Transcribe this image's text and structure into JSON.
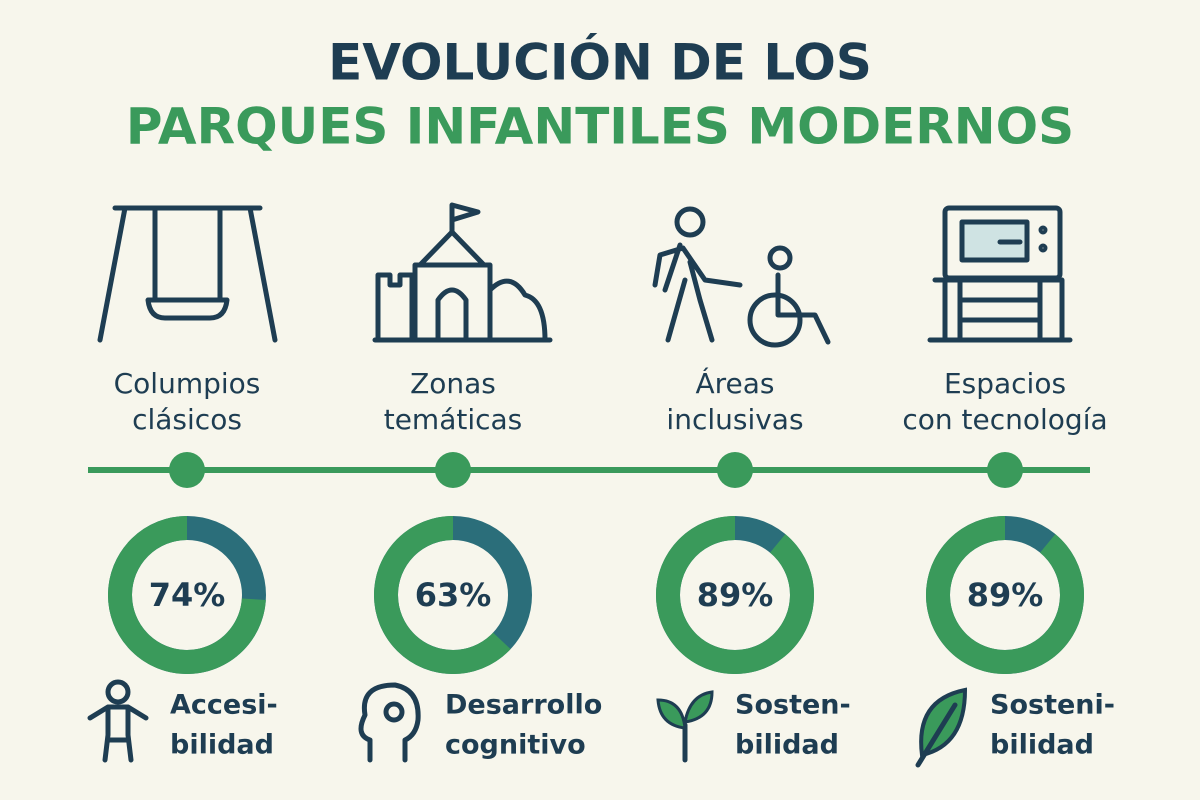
{
  "header": {
    "title_line1": "EVOLUCIÓN DE LOS",
    "title_line2": "PARQUES INFANTILES MODERNOS"
  },
  "stages": [
    {
      "title": [
        "Columpios",
        "clásicos"
      ],
      "percent": 74,
      "percent_label": "74%",
      "label": [
        "Accesi-",
        "bilidad"
      ]
    },
    {
      "title": [
        "Zonas",
        "temáticas"
      ],
      "percent": 63,
      "percent_label": "63%",
      "label": [
        "Desarrollo",
        "cognitivo"
      ]
    },
    {
      "title": [
        "Áreas",
        "inclusivas"
      ],
      "percent": 89,
      "percent_label": "89%",
      "label": [
        "Sosten-",
        "bilidad"
      ]
    },
    {
      "title": [
        "Espacios",
        "con tecnología"
      ],
      "percent": 89,
      "percent_label": "89%",
      "label": [
        "Sosteni-",
        "bilidad"
      ]
    }
  ]
}
